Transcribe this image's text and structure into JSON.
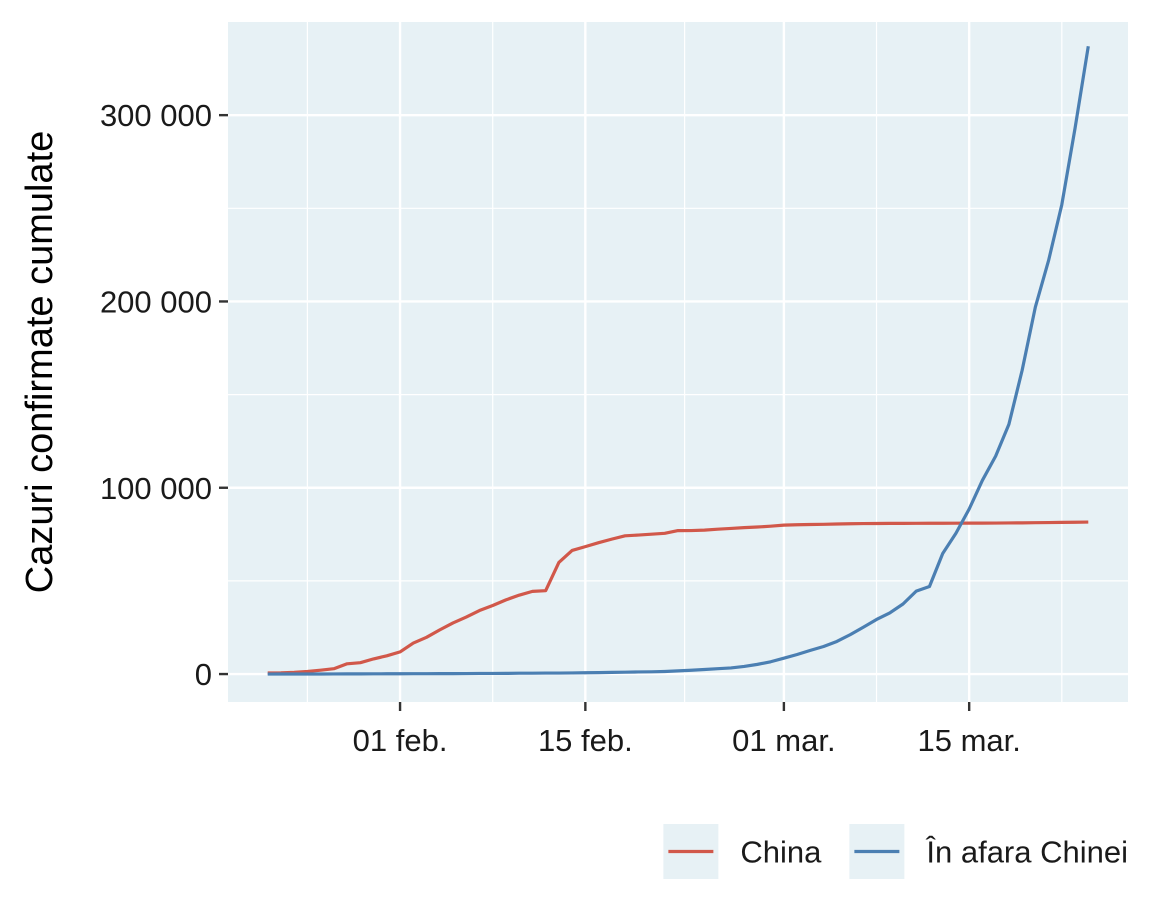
{
  "chart_data": {
    "type": "line",
    "title": "",
    "xlabel": "",
    "ylabel": "Cazuri confirmate cumulate",
    "x_axis": {
      "type": "date",
      "range": [
        "2020-01-19",
        "2020-03-27"
      ],
      "ticks": [
        {
          "date": "2020-02-01",
          "label": "01 feb."
        },
        {
          "date": "2020-02-15",
          "label": "15 feb."
        },
        {
          "date": "2020-03-01",
          "label": "01 mar."
        },
        {
          "date": "2020-03-15",
          "label": "15 mar."
        }
      ]
    },
    "y_axis": {
      "range": [
        -15000,
        350000
      ],
      "ticks": [
        {
          "value": 0,
          "label": "0"
        },
        {
          "value": 100000,
          "label": "100 000"
        },
        {
          "value": 200000,
          "label": "200 000"
        },
        {
          "value": 300000,
          "label": "300 000"
        }
      ]
    },
    "grid": true,
    "legend_position": "bottom",
    "background_color": "#e7f1f5",
    "grid_color": "#ffffff",
    "series": [
      {
        "name": "China",
        "color": "#d1584a",
        "points": [
          [
            "2020-01-22",
            548
          ],
          [
            "2020-01-23",
            643
          ],
          [
            "2020-01-24",
            920
          ],
          [
            "2020-01-25",
            1406
          ],
          [
            "2020-01-26",
            2075
          ],
          [
            "2020-01-27",
            2877
          ],
          [
            "2020-01-28",
            5509
          ],
          [
            "2020-01-29",
            6087
          ],
          [
            "2020-01-30",
            8141
          ],
          [
            "2020-01-31",
            9802
          ],
          [
            "2020-02-01",
            11891
          ],
          [
            "2020-02-02",
            16630
          ],
          [
            "2020-02-03",
            19716
          ],
          [
            "2020-02-04",
            23707
          ],
          [
            "2020-02-05",
            27440
          ],
          [
            "2020-02-06",
            30587
          ],
          [
            "2020-02-07",
            34110
          ],
          [
            "2020-02-08",
            36814
          ],
          [
            "2020-02-09",
            39829
          ],
          [
            "2020-02-10",
            42354
          ],
          [
            "2020-02-11",
            44386
          ],
          [
            "2020-02-12",
            44759
          ],
          [
            "2020-02-13",
            59895
          ],
          [
            "2020-02-14",
            66358
          ],
          [
            "2020-02-15",
            68413
          ],
          [
            "2020-02-16",
            70513
          ],
          [
            "2020-02-17",
            72434
          ],
          [
            "2020-02-18",
            74211
          ],
          [
            "2020-02-19",
            74619
          ],
          [
            "2020-02-20",
            75077
          ],
          [
            "2020-02-21",
            75550
          ],
          [
            "2020-02-22",
            77001
          ],
          [
            "2020-02-23",
            77022
          ],
          [
            "2020-02-24",
            77241
          ],
          [
            "2020-02-25",
            77754
          ],
          [
            "2020-02-26",
            78166
          ],
          [
            "2020-02-27",
            78600
          ],
          [
            "2020-02-28",
            78928
          ],
          [
            "2020-02-29",
            79356
          ],
          [
            "2020-03-01",
            79932
          ],
          [
            "2020-03-02",
            80136
          ],
          [
            "2020-03-03",
            80261
          ],
          [
            "2020-03-04",
            80386
          ],
          [
            "2020-03-05",
            80537
          ],
          [
            "2020-03-06",
            80690
          ],
          [
            "2020-03-07",
            80770
          ],
          [
            "2020-03-08",
            80823
          ],
          [
            "2020-03-09",
            80860
          ],
          [
            "2020-03-10",
            80887
          ],
          [
            "2020-03-11",
            80921
          ],
          [
            "2020-03-12",
            80932
          ],
          [
            "2020-03-13",
            80945
          ],
          [
            "2020-03-14",
            80977
          ],
          [
            "2020-03-15",
            81003
          ],
          [
            "2020-03-16",
            81033
          ],
          [
            "2020-03-17",
            81058
          ],
          [
            "2020-03-18",
            81102
          ],
          [
            "2020-03-19",
            81156
          ],
          [
            "2020-03-20",
            81250
          ],
          [
            "2020-03-21",
            81305
          ],
          [
            "2020-03-22",
            81435
          ],
          [
            "2020-03-23",
            81498
          ],
          [
            "2020-03-24",
            81591
          ]
        ]
      },
      {
        "name": "În afara Chinei",
        "color": "#4b7fb2",
        "points": [
          [
            "2020-01-22",
            7
          ],
          [
            "2020-01-23",
            11
          ],
          [
            "2020-01-24",
            21
          ],
          [
            "2020-01-25",
            28
          ],
          [
            "2020-01-26",
            43
          ],
          [
            "2020-01-27",
            50
          ],
          [
            "2020-01-28",
            83
          ],
          [
            "2020-01-29",
            93
          ],
          [
            "2020-01-30",
            118
          ],
          [
            "2020-01-31",
            153
          ],
          [
            "2020-02-01",
            173
          ],
          [
            "2020-02-02",
            183
          ],
          [
            "2020-02-03",
            188
          ],
          [
            "2020-02-04",
            212
          ],
          [
            "2020-02-05",
            227
          ],
          [
            "2020-02-06",
            265
          ],
          [
            "2020-02-07",
            317
          ],
          [
            "2020-02-08",
            343
          ],
          [
            "2020-02-09",
            361
          ],
          [
            "2020-02-10",
            457
          ],
          [
            "2020-02-11",
            476
          ],
          [
            "2020-02-12",
            523
          ],
          [
            "2020-02-13",
            538
          ],
          [
            "2020-02-14",
            595
          ],
          [
            "2020-02-15",
            685
          ],
          [
            "2020-02-16",
            780
          ],
          [
            "2020-02-17",
            896
          ],
          [
            "2020-02-18",
            999
          ],
          [
            "2020-02-19",
            1124
          ],
          [
            "2020-02-20",
            1212
          ],
          [
            "2020-02-21",
            1385
          ],
          [
            "2020-02-22",
            1715
          ],
          [
            "2020-02-23",
            2043
          ],
          [
            "2020-02-24",
            2461
          ],
          [
            "2020-02-25",
            2889
          ],
          [
            "2020-02-26",
            3300
          ],
          [
            "2020-02-27",
            4100
          ],
          [
            "2020-02-28",
            5200
          ],
          [
            "2020-02-29",
            6600
          ],
          [
            "2020-03-01",
            8500
          ],
          [
            "2020-03-02",
            10500
          ],
          [
            "2020-03-03",
            12700
          ],
          [
            "2020-03-04",
            14800
          ],
          [
            "2020-03-05",
            17500
          ],
          [
            "2020-03-06",
            21100
          ],
          [
            "2020-03-07",
            25100
          ],
          [
            "2020-03-08",
            29300
          ],
          [
            "2020-03-09",
            32800
          ],
          [
            "2020-03-10",
            37600
          ],
          [
            "2020-03-11",
            44500
          ],
          [
            "2020-03-12",
            47000
          ],
          [
            "2020-03-13",
            64700
          ],
          [
            "2020-03-14",
            75600
          ],
          [
            "2020-03-15",
            88600
          ],
          [
            "2020-03-16",
            104000
          ],
          [
            "2020-03-17",
            117000
          ],
          [
            "2020-03-18",
            134000
          ],
          [
            "2020-03-19",
            163000
          ],
          [
            "2020-03-20",
            197000
          ],
          [
            "2020-03-21",
            222000
          ],
          [
            "2020-03-22",
            252000
          ],
          [
            "2020-03-23",
            293000
          ],
          [
            "2020-03-24",
            337000
          ]
        ]
      }
    ]
  }
}
